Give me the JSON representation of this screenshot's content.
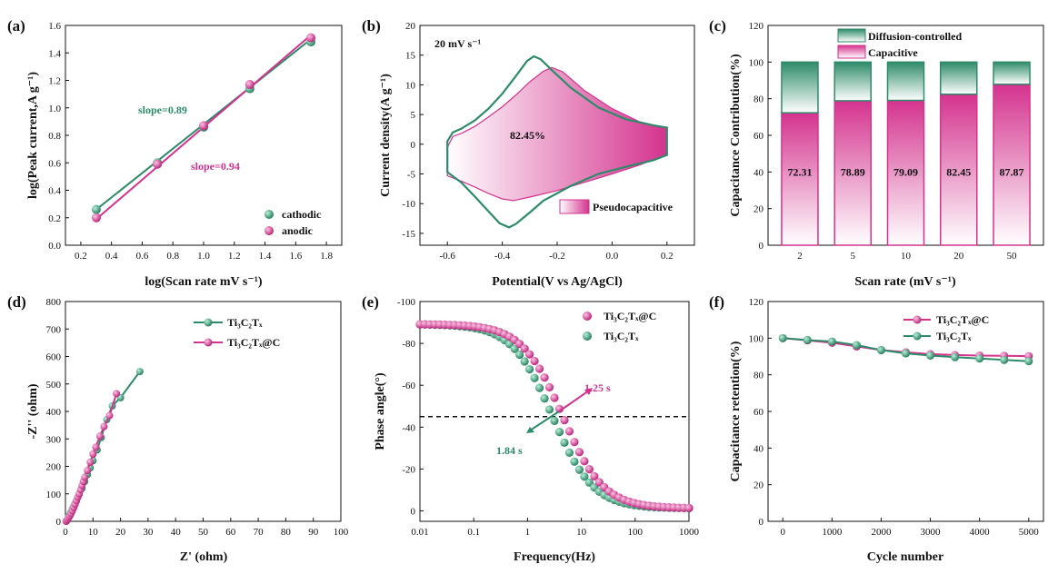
{
  "colors": {
    "green": "#2e8b69",
    "pink": "#d4338e",
    "black": "#111111"
  },
  "panels": [
    {
      "label": "(a)",
      "xlabel": "log(Scan rate mV s⁻¹)",
      "ylabel": "log(Peak current,A g⁻¹)",
      "legend": [
        "cathodic",
        "anodic"
      ],
      "annotations": [
        "slope=0.89",
        "slope=0.94"
      ]
    },
    {
      "label": "(b)",
      "xlabel": "Potential(V vs Ag/AgCl)",
      "ylabel": "Current density(A g⁻¹)",
      "annotations": [
        "20 mV s⁻¹",
        "82.45%"
      ],
      "legend": [
        "Pseudocapacitive"
      ]
    },
    {
      "label": "(c)",
      "xlabel": "Scan rate (mV s⁻¹)",
      "ylabel": "Capacitance Contribution(%)",
      "legend": [
        "Diffusion-controlled",
        "Capacitive"
      ]
    },
    {
      "label": "(d)",
      "xlabel": "Z' (ohm)",
      "ylabel": "-Z'' (ohm)",
      "legend": [
        "Ti₃C₂Tₓ",
        "Ti₃C₂Tₓ@C"
      ]
    },
    {
      "label": "(e)",
      "xlabel": "Frequency(Hz)",
      "ylabel": "Phase angle(°)",
      "legend": [
        "Ti₃C₂Tₓ@C",
        "Ti₃C₂Tₓ"
      ],
      "annotations": [
        "1.25 s",
        "1.84 s"
      ]
    },
    {
      "label": "(f)",
      "xlabel": "Cycle number",
      "ylabel": "Capacitance retention(%)",
      "legend": [
        "Ti₃C₂Tₓ@C",
        "Ti₃C₂Tₓ"
      ]
    }
  ],
  "chart_data": [
    {
      "type": "scatter",
      "title": "(a)",
      "xlim": [
        0.1,
        1.9
      ],
      "ylim": [
        0.0,
        1.6
      ],
      "xticks": [
        0.2,
        0.4,
        0.6,
        0.8,
        1.0,
        1.2,
        1.4,
        1.6,
        1.8
      ],
      "yticks": [
        0.0,
        0.2,
        0.4,
        0.6,
        0.8,
        1.0,
        1.2,
        1.4,
        1.6
      ],
      "series": [
        {
          "name": "cathodic",
          "color": "green",
          "x": [
            0.301,
            0.699,
            1.0,
            1.301,
            1.699
          ],
          "y": [
            0.26,
            0.6,
            0.86,
            1.14,
            1.48
          ],
          "fit": [
            0.26,
            1.5
          ]
        },
        {
          "name": "anodic",
          "color": "pink",
          "x": [
            0.301,
            0.699,
            1.0,
            1.301,
            1.699
          ],
          "y": [
            0.2,
            0.59,
            0.87,
            1.17,
            1.51
          ],
          "fit": [
            0.19,
            1.53
          ]
        }
      ]
    },
    {
      "type": "line",
      "title": "(b)",
      "xlim": [
        -0.7,
        0.3
      ],
      "ylim": [
        -17,
        20
      ],
      "xticks": [
        -0.6,
        -0.4,
        -0.2,
        0.0,
        0.2
      ],
      "yticks": [
        -15,
        -10,
        -5,
        0,
        5,
        10,
        15,
        20
      ],
      "fill_label": "82.45%",
      "cv_total": [
        [
          -0.6,
          -4.7
        ],
        [
          -0.6,
          0.5
        ],
        [
          -0.58,
          2.0
        ],
        [
          -0.55,
          2.6
        ],
        [
          -0.5,
          4.0
        ],
        [
          -0.45,
          6.0
        ],
        [
          -0.4,
          8.5
        ],
        [
          -0.35,
          11.5
        ],
        [
          -0.31,
          14.0
        ],
        [
          -0.285,
          14.8
        ],
        [
          -0.26,
          14.3
        ],
        [
          -0.22,
          12.5
        ],
        [
          -0.15,
          9.5
        ],
        [
          -0.05,
          6.2
        ],
        [
          0.05,
          4.2
        ],
        [
          0.15,
          3.2
        ],
        [
          0.2,
          2.8
        ],
        [
          0.2,
          -1.8
        ],
        [
          0.15,
          -2.7
        ],
        [
          0.05,
          -3.8
        ],
        [
          -0.05,
          -5.0
        ],
        [
          -0.15,
          -7.0
        ],
        [
          -0.25,
          -9.5
        ],
        [
          -0.3,
          -11.5
        ],
        [
          -0.35,
          -13.4
        ],
        [
          -0.375,
          -14.0
        ],
        [
          -0.41,
          -13.3
        ],
        [
          -0.45,
          -11.3
        ],
        [
          -0.5,
          -8.8
        ],
        [
          -0.55,
          -6.4
        ],
        [
          -0.6,
          -4.7
        ]
      ],
      "cv_capacitive": [
        [
          -0.6,
          -5.3
        ],
        [
          -0.6,
          -0.5
        ],
        [
          -0.58,
          1.3
        ],
        [
          -0.55,
          1.8
        ],
        [
          -0.5,
          3.0
        ],
        [
          -0.45,
          4.6
        ],
        [
          -0.4,
          6.3
        ],
        [
          -0.35,
          8.3
        ],
        [
          -0.3,
          10.5
        ],
        [
          -0.25,
          12.3
        ],
        [
          -0.22,
          12.9
        ],
        [
          -0.18,
          12.2
        ],
        [
          -0.1,
          9.0
        ],
        [
          0.0,
          6.0
        ],
        [
          0.1,
          3.8
        ],
        [
          0.2,
          2.5
        ],
        [
          0.2,
          -1.7
        ],
        [
          0.1,
          -3.5
        ],
        [
          0.0,
          -5.0
        ],
        [
          -0.1,
          -6.4
        ],
        [
          -0.2,
          -7.8
        ],
        [
          -0.3,
          -8.9
        ],
        [
          -0.36,
          -9.5
        ],
        [
          -0.4,
          -9.2
        ],
        [
          -0.45,
          -8.3
        ],
        [
          -0.5,
          -7.2
        ],
        [
          -0.55,
          -6.2
        ],
        [
          -0.6,
          -5.3
        ]
      ]
    },
    {
      "type": "bar",
      "title": "(c)",
      "categories": [
        "2",
        "5",
        "10",
        "20",
        "50"
      ],
      "series": [
        {
          "name": "Capacitive",
          "color": "pink",
          "values": [
            72.31,
            78.89,
            79.09,
            82.45,
            87.87
          ]
        },
        {
          "name": "Diffusion-controlled",
          "color": "green",
          "values": [
            27.69,
            21.11,
            20.91,
            17.55,
            12.13
          ]
        }
      ],
      "data_labels": [
        "72.31",
        "78.89",
        "79.09",
        "82.45",
        "87.87"
      ],
      "ylim": [
        0,
        120
      ],
      "yticks": [
        0,
        20,
        40,
        60,
        80,
        100,
        120
      ]
    },
    {
      "type": "scatter",
      "title": "(d)",
      "xlim": [
        0,
        100
      ],
      "ylim": [
        0,
        800
      ],
      "xticks": [
        0,
        10,
        20,
        30,
        40,
        50,
        60,
        70,
        80,
        90,
        100
      ],
      "yticks": [
        0,
        100,
        200,
        300,
        400,
        500,
        600,
        700,
        800
      ],
      "series": [
        {
          "name": "Ti₃C₂Tₓ",
          "color": "green",
          "x": [
            0.3,
            0.6,
            1,
            1.5,
            2,
            2.5,
            3,
            3.5,
            4,
            4.5,
            5,
            6,
            7,
            8,
            9,
            10,
            11.5,
            13,
            15,
            17,
            20,
            27
          ],
          "y": [
            0,
            5,
            15,
            25,
            35,
            45,
            55,
            65,
            75,
            88,
            100,
            120,
            145,
            170,
            195,
            220,
            260,
            305,
            370,
            420,
            450,
            545
          ]
        },
        {
          "name": "Ti₃C₂Tₓ@C",
          "color": "pink",
          "x": [
            0.2,
            0.5,
            0.8,
            1.2,
            1.6,
            2,
            2.5,
            3,
            3.5,
            4,
            4.5,
            5,
            5.5,
            6,
            6.5,
            7,
            8,
            9,
            10,
            11,
            12.5,
            14,
            16,
            18.5
          ],
          "y": [
            0,
            4,
            8,
            14,
            20,
            28,
            38,
            50,
            62,
            75,
            88,
            100,
            115,
            130,
            145,
            160,
            185,
            215,
            245,
            270,
            310,
            345,
            385,
            465
          ]
        }
      ]
    },
    {
      "type": "scatter",
      "title": "(e)",
      "xscale": "log",
      "xlim": [
        0.01,
        1000
      ],
      "ylim": [
        5,
        -100
      ],
      "xticks": [
        "0.01",
        "0.1",
        "1",
        "10",
        "100",
        "1000"
      ],
      "yticks": [
        0,
        -20,
        -40,
        -60,
        -80,
        -100
      ],
      "reference_y": -45,
      "series": [
        {
          "name": "Ti₃C₂Tₓ@C",
          "color": "pink",
          "tau_s": 1.25,
          "f0": 4.5,
          "amp": -88
        },
        {
          "name": "Ti₃C₂Tₓ",
          "color": "green",
          "tau_s": 1.84,
          "f0": 2.9,
          "amp": -88
        }
      ]
    },
    {
      "type": "line",
      "title": "(f)",
      "xlim": [
        -300,
        5300
      ],
      "ylim": [
        0,
        120
      ],
      "xticks": [
        0,
        1000,
        2000,
        3000,
        4000,
        5000
      ],
      "yticks": [
        0,
        20,
        40,
        60,
        80,
        100,
        120
      ],
      "series": [
        {
          "name": "Ti₃C₂Tₓ@C",
          "color": "pink",
          "x": [
            0,
            500,
            1000,
            1500,
            2000,
            2500,
            3000,
            3500,
            4000,
            4500,
            5000
          ],
          "y": [
            100,
            98.8,
            97.5,
            95.5,
            93.5,
            92.3,
            91.3,
            90.8,
            90.5,
            90.4,
            90.2
          ]
        },
        {
          "name": "Ti₃C₂Tₓ",
          "color": "green",
          "x": [
            0,
            500,
            1000,
            1500,
            2000,
            2500,
            3000,
            3500,
            4000,
            4500,
            5000
          ],
          "y": [
            100,
            99,
            98.2,
            96.2,
            93.5,
            91.7,
            90.5,
            89.6,
            88.9,
            88.1,
            87.4
          ]
        }
      ]
    }
  ]
}
